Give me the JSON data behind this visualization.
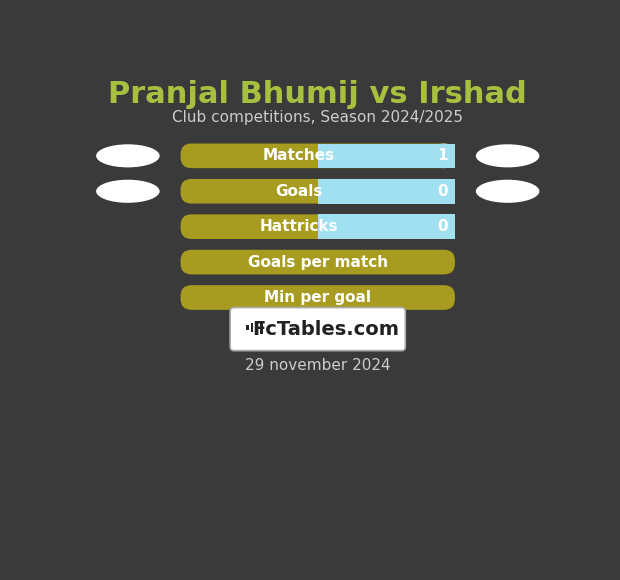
{
  "title": "Pranjal Bhumij vs Irshad",
  "subtitle": "Club competitions, Season 2024/2025",
  "date_text": "29 november 2024",
  "background_color": "#3a3a3a",
  "title_color": "#a8c040",
  "subtitle_color": "#cccccc",
  "date_color": "#cccccc",
  "bar_gold_color": "#a89c20",
  "bar_cyan_color": "#a0e0f0",
  "bar_text_color": "#ffffff",
  "oval_color": "#ffffff",
  "rows": [
    {
      "label": "Matches",
      "value": "1",
      "has_cyan": true
    },
    {
      "label": "Goals",
      "value": "0",
      "has_cyan": true
    },
    {
      "label": "Hattricks",
      "value": "0",
      "has_cyan": true
    },
    {
      "label": "Goals per match",
      "value": "",
      "has_cyan": false
    },
    {
      "label": "Min per goal",
      "value": "",
      "has_cyan": false
    }
  ],
  "oval_row_indices": [
    0,
    1
  ],
  "fctables_box_color": "#ffffff",
  "fctables_text": "FcTables.com",
  "logo_box_border": "#aaaaaa"
}
